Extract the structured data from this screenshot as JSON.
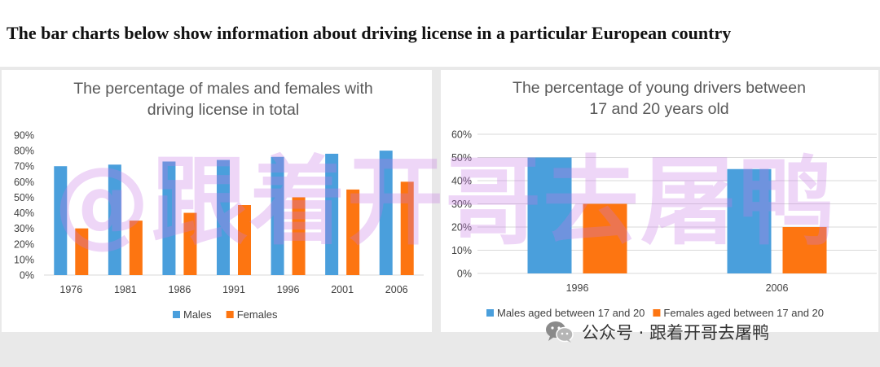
{
  "header": {
    "title": "The bar charts below show information about driving license in a particular European country"
  },
  "watermark": {
    "text": "@跟着开哥去屠鸭"
  },
  "footer": {
    "text": "公众号 · 跟着开哥去屠鸭",
    "icon": "wechat-icon"
  },
  "colors": {
    "males": "#4a9fdc",
    "females": "#fd7511"
  },
  "chart_data": [
    {
      "type": "bar",
      "title_lines": [
        "The percentage of  males and females with",
        "driving license in total"
      ],
      "categories": [
        "1976",
        "1981",
        "1986",
        "1991",
        "1996",
        "2001",
        "2006"
      ],
      "series": [
        {
          "name": "Males",
          "values": [
            70,
            71,
            73,
            74,
            76,
            78,
            80
          ]
        },
        {
          "name": "Females",
          "values": [
            30,
            35,
            40,
            45,
            50,
            55,
            60
          ]
        }
      ],
      "yticks": [
        "0%",
        "10%",
        "20%",
        "30%",
        "40%",
        "50%",
        "60%",
        "70%",
        "80%",
        "90%"
      ],
      "ylim": [
        0,
        90
      ],
      "ystep": 10,
      "grid": false,
      "legend": "bottom"
    },
    {
      "type": "bar",
      "title_lines": [
        "The percentage of young drivers between",
        "17 and 20 years old"
      ],
      "categories": [
        "1996",
        "2006"
      ],
      "series": [
        {
          "name": "Males aged between 17 and 20",
          "values": [
            50,
            45
          ]
        },
        {
          "name": "Females aged between 17 and 20",
          "values": [
            30,
            20
          ]
        }
      ],
      "yticks": [
        "0%",
        "10%",
        "20%",
        "30%",
        "40%",
        "50%",
        "60%"
      ],
      "ylim": [
        0,
        60
      ],
      "ystep": 10,
      "grid": true,
      "legend": "bottom"
    }
  ]
}
